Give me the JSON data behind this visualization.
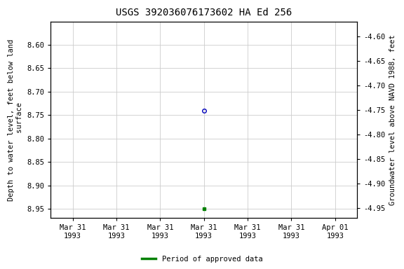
{
  "title": "USGS 392036076173602 HA Ed 256",
  "ylabel_left": "Depth to water level, feet below land\n surface",
  "ylabel_right": "Groundwater level above NAVD 1988, feet",
  "ylim_left": [
    8.55,
    8.97
  ],
  "ylim_right": [
    -4.57,
    -4.97
  ],
  "yticks_left": [
    8.6,
    8.65,
    8.7,
    8.75,
    8.8,
    8.85,
    8.9,
    8.95
  ],
  "yticks_right": [
    -4.6,
    -4.65,
    -4.7,
    -4.75,
    -4.8,
    -4.85,
    -4.9,
    -4.95
  ],
  "point_open_value": 8.74,
  "point_open_color": "#0000bb",
  "point_filled_value": 8.95,
  "point_filled_color": "#008000",
  "xtick_labels": [
    "Mar 31\n1993",
    "Mar 31\n1993",
    "Mar 31\n1993",
    "Mar 31\n1993",
    "Mar 31\n1993",
    "Mar 31\n1993",
    "Apr 01\n1993"
  ],
  "legend_label": "Period of approved data",
  "legend_color": "#008000",
  "background_color": "#ffffff",
  "grid_color": "#cccccc",
  "title_fontsize": 10,
  "axis_fontsize": 7.5,
  "tick_fontsize": 7.5
}
